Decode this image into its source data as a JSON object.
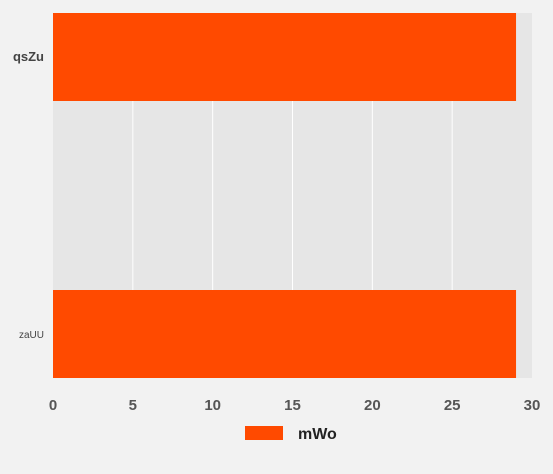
{
  "chart_data": {
    "type": "bar",
    "orientation": "horizontal",
    "categories": [
      "qsZu",
      "zaUU"
    ],
    "series": [
      {
        "name": "mWo",
        "values": [
          29,
          29
        ],
        "color": "#ff4a00"
      }
    ],
    "x_ticks": [
      "0",
      "5",
      "10",
      "15",
      "20",
      "25",
      "30"
    ],
    "xlim": [
      0,
      30
    ],
    "grid": true,
    "legend_position": "bottom"
  },
  "colors": {
    "background": "#f2f2f2",
    "plot_background": "#e6e6e6",
    "grid": "#ffffff",
    "bar": "#ff4a00"
  }
}
